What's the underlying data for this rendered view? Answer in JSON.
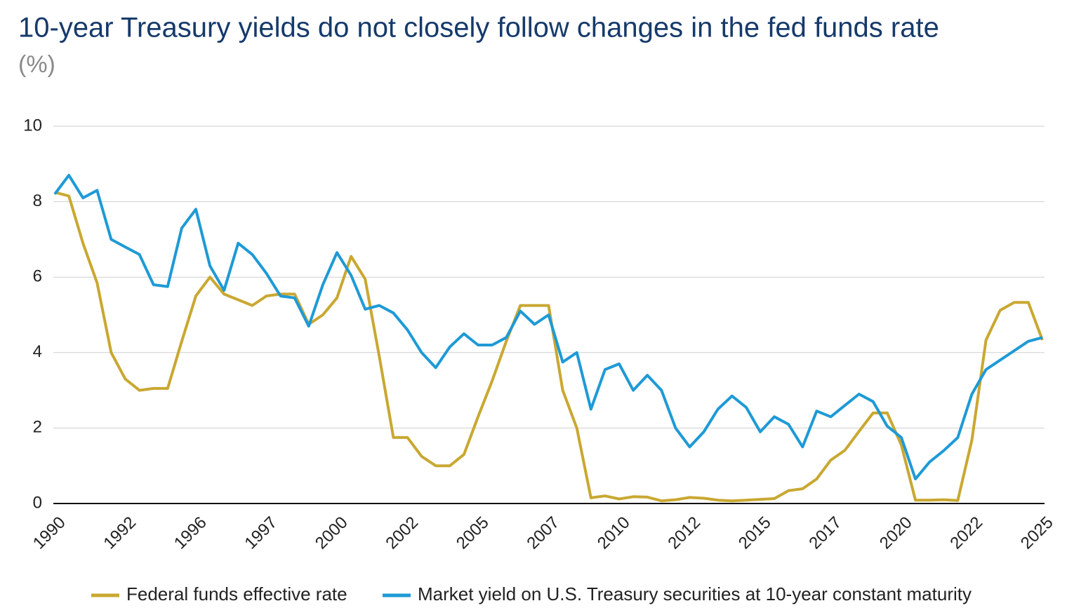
{
  "chart_data": {
    "type": "line",
    "title": "10-year Treasury yields do not closely follow changes in the fed funds rate",
    "subtitle": "(%)",
    "categories": [
      "1990",
      null,
      null,
      null,
      null,
      "1992",
      null,
      null,
      null,
      null,
      "1996",
      null,
      null,
      null,
      null,
      "1997",
      null,
      null,
      null,
      null,
      "2000",
      null,
      null,
      null,
      null,
      "2002",
      null,
      null,
      null,
      null,
      "2005",
      null,
      null,
      null,
      null,
      "2007",
      null,
      null,
      null,
      null,
      "2010",
      null,
      null,
      null,
      null,
      "2012",
      null,
      null,
      null,
      null,
      "2015",
      null,
      null,
      null,
      null,
      "2017",
      null,
      null,
      null,
      null,
      "2020",
      null,
      null,
      null,
      null,
      "2022",
      null,
      null,
      null,
      null,
      "2025"
    ],
    "series": [
      {
        "name": "Federal funds effective rate",
        "color": "#c9a831",
        "values": [
          8.25,
          8.15,
          6.9,
          5.85,
          4.0,
          3.3,
          3.0,
          3.05,
          3.05,
          4.3,
          5.5,
          6.0,
          5.55,
          5.4,
          5.25,
          5.5,
          5.55,
          5.55,
          4.75,
          5.0,
          5.45,
          6.55,
          5.95,
          3.9,
          1.75,
          1.75,
          1.25,
          1.0,
          1.0,
          1.3,
          2.3,
          3.25,
          4.3,
          5.25,
          5.25,
          5.25,
          3.0,
          2.0,
          0.15,
          0.2,
          0.12,
          0.18,
          0.17,
          0.07,
          0.1,
          0.16,
          0.14,
          0.09,
          0.07,
          0.09,
          0.11,
          0.13,
          0.34,
          0.39,
          0.65,
          1.15,
          1.41,
          1.91,
          2.4,
          2.4,
          1.55,
          0.09,
          0.09,
          0.1,
          0.08,
          1.68,
          4.33,
          5.12,
          5.33,
          5.33,
          4.33
        ]
      },
      {
        "name": "Market yield on U.S. Treasury securities at 10-year constant maturity",
        "color": "#1e9ad6",
        "values": [
          8.2,
          8.7,
          8.1,
          8.3,
          7.0,
          6.8,
          6.6,
          5.8,
          5.75,
          7.3,
          7.8,
          6.3,
          5.65,
          6.9,
          6.6,
          6.1,
          5.5,
          5.45,
          4.7,
          5.8,
          6.65,
          6.05,
          5.15,
          5.25,
          5.05,
          4.6,
          4.0,
          3.6,
          4.15,
          4.5,
          4.2,
          4.2,
          4.4,
          5.1,
          4.75,
          5.0,
          3.75,
          4.0,
          2.5,
          3.55,
          3.7,
          3.0,
          3.4,
          3.0,
          2.0,
          1.5,
          1.9,
          2.5,
          2.85,
          2.55,
          1.9,
          2.3,
          2.1,
          1.5,
          2.45,
          2.3,
          2.6,
          2.9,
          2.7,
          2.05,
          1.75,
          0.65,
          1.1,
          1.4,
          1.75,
          2.9,
          3.55,
          3.8,
          4.05,
          4.3,
          4.4
        ]
      }
    ],
    "ylim": [
      0,
      10
    ],
    "yticks": [
      0,
      2,
      4,
      6,
      8,
      10
    ],
    "grid": true
  }
}
